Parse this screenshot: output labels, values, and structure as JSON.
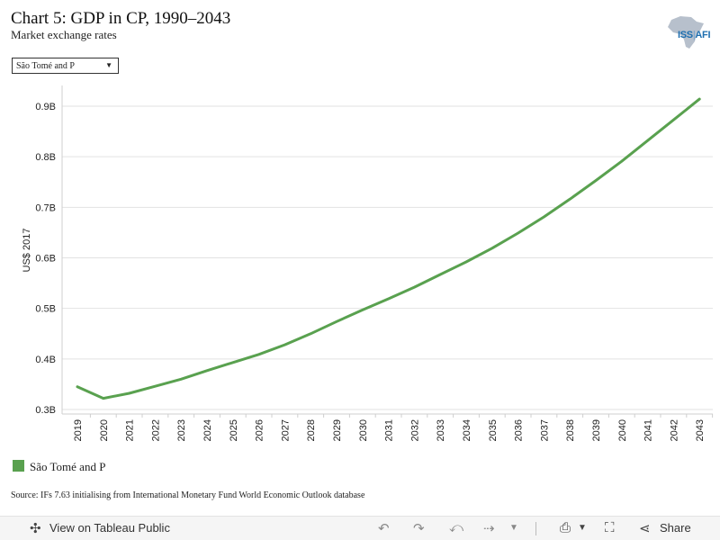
{
  "header": {
    "title": "Chart 5: GDP in CP, 1990–2043",
    "subtitle": "Market exchange rates"
  },
  "logo": {
    "text_main": "ISS",
    "text_sep": "|",
    "text_suffix": "AFI"
  },
  "filter": {
    "selected": "São Tomé and P"
  },
  "chart_data": {
    "type": "line",
    "ylabel": "US$ 2017",
    "ylim": [
      0.3,
      0.9
    ],
    "yticks": [
      "0.3B",
      "0.4B",
      "0.5B",
      "0.6B",
      "0.7B",
      "0.8B",
      "0.9B"
    ],
    "ytick_values": [
      0.3,
      0.4,
      0.5,
      0.6,
      0.7,
      0.8,
      0.9
    ],
    "x": [
      "2019",
      "2020",
      "2021",
      "2022",
      "2023",
      "2024",
      "2025",
      "2026",
      "2027",
      "2028",
      "2029",
      "2030",
      "2031",
      "2032",
      "2033",
      "2034",
      "2035",
      "2036",
      "2037",
      "2038",
      "2039",
      "2040",
      "2041",
      "2042",
      "2043"
    ],
    "series": [
      {
        "name": "São Tomé and P",
        "color": "#59a14f",
        "values": [
          0.345,
          0.322,
          0.332,
          0.346,
          0.36,
          0.377,
          0.393,
          0.409,
          0.428,
          0.45,
          0.474,
          0.497,
          0.519,
          0.542,
          0.567,
          0.592,
          0.619,
          0.649,
          0.681,
          0.716,
          0.753,
          0.791,
          0.832,
          0.873,
          0.914
        ]
      }
    ],
    "grid": true,
    "legend_position": "bottom-left"
  },
  "source": "Source: IFs 7.63 initialising from International Monetary Fund World Economic Outlook database",
  "toolbar": {
    "view_label": "View on Tableau Public",
    "share_label": "Share",
    "icons": [
      "tableau-icon",
      "undo-icon",
      "redo-icon",
      "revert-icon",
      "refresh-icon",
      "dropdown-icon",
      "download-icon",
      "fullscreen-icon",
      "share-icon"
    ]
  }
}
